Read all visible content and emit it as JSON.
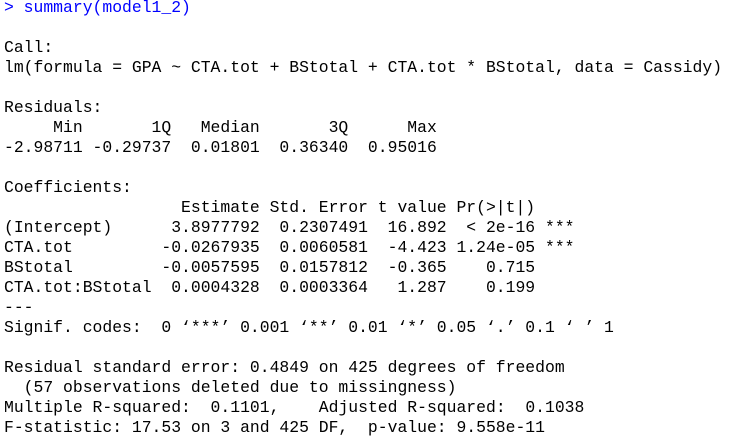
{
  "command": "> summary(model1_2)",
  "call": {
    "label": "Call:",
    "formula": "lm(formula = GPA ~ CTA.tot + BStotal + CTA.tot * BStotal, data = Cassidy)"
  },
  "residuals": {
    "label": "Residuals:",
    "header": "     Min       1Q   Median       3Q      Max",
    "values": "-2.98711 -0.29737  0.01801  0.36340  0.95016"
  },
  "coefficients": {
    "label": "Coefficients:",
    "header": "                  Estimate Std. Error t value Pr(>|t|)",
    "rows": [
      "(Intercept)      3.8977792  0.2307491  16.892  < 2e-16 ***",
      "CTA.tot         -0.0267935  0.0060581  -4.423 1.24e-05 ***",
      "BStotal         -0.0057595  0.0157812  -0.365    0.715",
      "CTA.tot:BStotal  0.0004328  0.0003364   1.287    0.199"
    ],
    "separator": "---",
    "signif": "Signif. codes:  0 ‘***’ 0.001 ‘**’ 0.01 ‘*’ 0.05 ‘.’ 0.1 ‘ ’ 1"
  },
  "summary": [
    "Residual standard error: 0.4849 on 425 degrees of freedom",
    "  (57 observations deleted due to missingness)",
    "Multiple R-squared:  0.1101,\tAdjusted R-squared:  0.1038 ",
    "F-statistic: 17.53 on 3 and 425 DF,  p-value: 9.558e-11"
  ]
}
